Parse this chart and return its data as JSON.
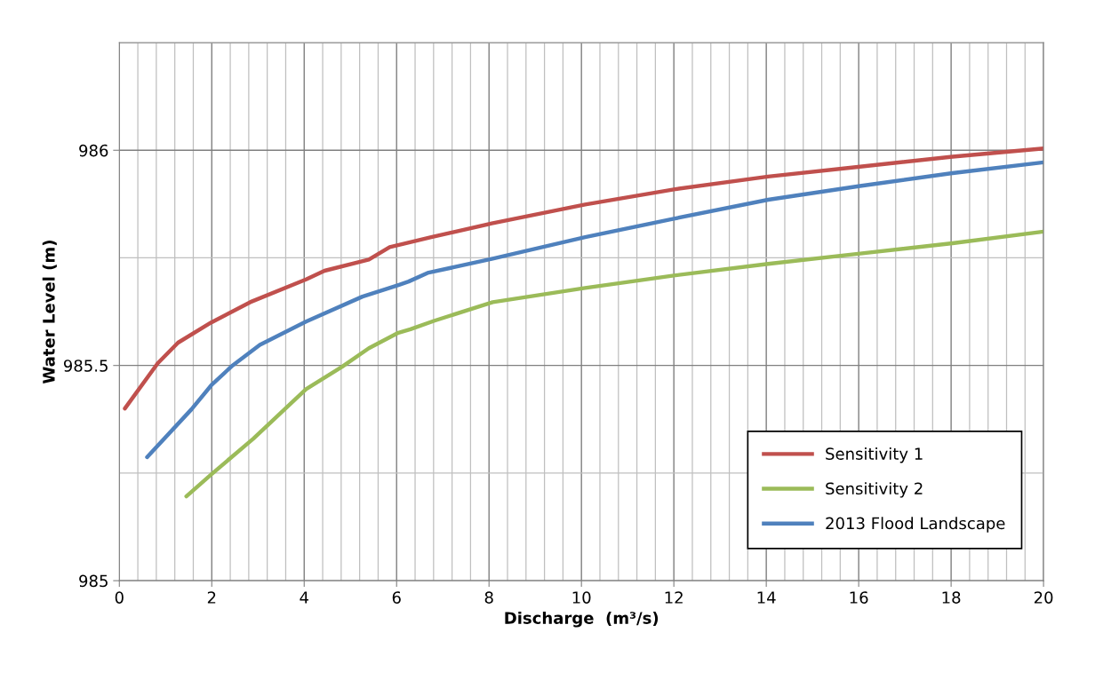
{
  "chart_data": {
    "type": "line",
    "xlabel": "Discharge  (m³/s)",
    "ylabel": "Water Level (m)",
    "xlim": [
      0,
      20
    ],
    "ylim": [
      985,
      986.25
    ],
    "xticks": [
      0,
      {
        "value": 0.4,
        "label": null
      },
      {
        "value": 0.8,
        "label": null
      },
      {
        "value": 1.2,
        "label": null
      },
      {
        "value": 1.6,
        "label": null
      },
      2,
      {
        "value": 2.4,
        "label": null
      },
      {
        "value": 2.8,
        "label": null
      },
      {
        "value": 3.2,
        "label": null
      },
      {
        "value": 3.6,
        "label": null
      },
      4,
      {
        "value": 4.4,
        "label": null
      },
      {
        "value": 4.8,
        "label": null
      },
      {
        "value": 5.2,
        "label": null
      },
      {
        "value": 5.6,
        "label": null
      },
      6,
      {
        "value": 6.4,
        "label": null
      },
      {
        "value": 6.8,
        "label": null
      },
      {
        "value": 7.2,
        "label": null
      },
      {
        "value": 7.6,
        "label": null
      },
      8,
      {
        "value": 8.4,
        "label": null
      },
      {
        "value": 8.8,
        "label": null
      },
      {
        "value": 9.2,
        "label": null
      },
      {
        "value": 9.6,
        "label": null
      },
      10,
      {
        "value": 10.4,
        "label": null
      },
      {
        "value": 10.8,
        "label": null
      },
      {
        "value": 11.2,
        "label": null
      },
      {
        "value": 11.6,
        "label": null
      },
      12,
      {
        "value": 12.4,
        "label": null
      },
      {
        "value": 12.8,
        "label": null
      },
      {
        "value": 13.2,
        "label": null
      },
      {
        "value": 13.6,
        "label": null
      },
      14,
      {
        "value": 14.4,
        "label": null
      },
      {
        "value": 14.8,
        "label": null
      },
      {
        "value": 15.2,
        "label": null
      },
      {
        "value": 15.6,
        "label": null
      },
      16,
      {
        "value": 16.4,
        "label": null
      },
      {
        "value": 16.8,
        "label": null
      },
      {
        "value": 17.2,
        "label": null
      },
      {
        "value": 17.6,
        "label": null
      },
      18,
      {
        "value": 18.4,
        "label": null
      },
      {
        "value": 18.8,
        "label": null
      },
      {
        "value": 19.2,
        "label": null
      },
      {
        "value": 19.6,
        "label": null
      },
      20
    ],
    "yticks": [
      985,
      {
        "value": 985.25,
        "label": null
      },
      985.5,
      {
        "value": 985.75,
        "label": null
      },
      986,
      {
        "value": 986.25,
        "label": null
      }
    ],
    "grid": true,
    "legend": "bottom right",
    "marker": "none",
    "line_style": "solid",
    "series": [
      {
        "name": "Sensitivity 1",
        "color": "#c0504d",
        "x": [
          0.12,
          0.83,
          1.27,
          1.99,
          2.83,
          4.04,
          4.44,
          5.4,
          5.85,
          6.75,
          8.06,
          10.08,
          12.0,
          14.04,
          16.03,
          18.03,
          20.0
        ],
        "values": [
          985.4,
          985.505,
          985.553,
          985.6,
          985.647,
          985.7,
          985.72,
          985.746,
          985.775,
          985.798,
          985.83,
          985.874,
          985.909,
          985.939,
          985.962,
          985.985,
          986.004
        ]
      },
      {
        "name": "Sensitivity 2",
        "color": "#9bbb59",
        "x": [
          1.45,
          1.99,
          2.9,
          4.04,
          4.82,
          5.4,
          6.04,
          6.3,
          6.82,
          8.08,
          10.08,
          12.0,
          14.04,
          16.03,
          18.03,
          20.0
        ],
        "values": [
          985.196,
          985.247,
          985.33,
          985.445,
          985.497,
          985.54,
          985.576,
          985.584,
          985.604,
          985.647,
          985.68,
          985.709,
          985.736,
          985.76,
          985.784,
          985.811
        ]
      },
      {
        "name": "2013 Flood Landscape",
        "color": "#4f81bd",
        "x": [
          0.6,
          1.56,
          1.99,
          2.45,
          3.04,
          4.04,
          5.26,
          6.04,
          6.26,
          6.67,
          8.08,
          10.08,
          12.0,
          14.04,
          16.03,
          18.03,
          20.0
        ],
        "values": [
          985.287,
          985.398,
          985.454,
          985.5,
          985.548,
          985.602,
          985.66,
          985.687,
          985.695,
          985.715,
          985.748,
          985.798,
          985.841,
          985.885,
          985.917,
          985.947,
          985.972
        ]
      }
    ]
  }
}
